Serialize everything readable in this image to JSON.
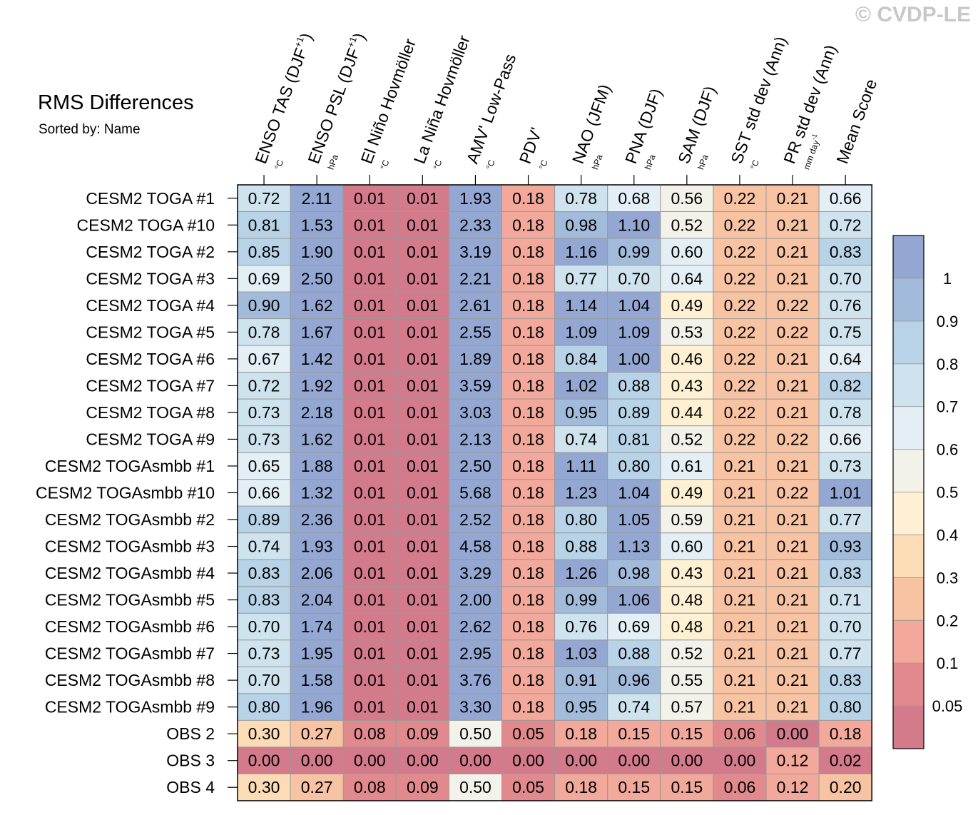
{
  "watermark": "© CVDP-LE",
  "chart_data": {
    "type": "heatmap",
    "title": "RMS Differences",
    "subtitle": "Sorted by: Name",
    "columns": [
      {
        "label": "ENSO TAS (DJF",
        "sup": "+1",
        "close": ")",
        "unit": "°C"
      },
      {
        "label": "ENSO PSL (DJF",
        "sup": "+1",
        "close": ")",
        "unit": "hPa"
      },
      {
        "label": "El Niño Hovmöller",
        "unit": "°C"
      },
      {
        "label": "La Niña Hovmöller",
        "unit": "°C"
      },
      {
        "label": "AMV' Low-Pass",
        "unit": "°C"
      },
      {
        "label": "PDV'",
        "unit": "°C"
      },
      {
        "label": "NAO (JFM)",
        "unit": "hPa"
      },
      {
        "label": "PNA (DJF)",
        "unit": "hPa"
      },
      {
        "label": "SAM (DJF)",
        "unit": "hPa"
      },
      {
        "label": "SST std dev (Ann)",
        "unit": "°C"
      },
      {
        "label": "PR std dev (Ann)",
        "unit": "mm day",
        "unit_sup": "-1"
      },
      {
        "label": "Mean Score",
        "unit": ""
      }
    ],
    "rows": [
      "CESM2 TOGA #1",
      "CESM2 TOGA #10",
      "CESM2 TOGA #2",
      "CESM2 TOGA #3",
      "CESM2 TOGA #4",
      "CESM2 TOGA #5",
      "CESM2 TOGA #6",
      "CESM2 TOGA #7",
      "CESM2 TOGA #8",
      "CESM2 TOGA #9",
      "CESM2 TOGAsmbb #1",
      "CESM2 TOGAsmbb #10",
      "CESM2 TOGAsmbb #2",
      "CESM2 TOGAsmbb #3",
      "CESM2 TOGAsmbb #4",
      "CESM2 TOGAsmbb #5",
      "CESM2 TOGAsmbb #6",
      "CESM2 TOGAsmbb #7",
      "CESM2 TOGAsmbb #8",
      "CESM2 TOGAsmbb #9",
      "OBS 2",
      "OBS 3",
      "OBS 4"
    ],
    "values": [
      [
        "0.72",
        "2.11",
        "0.01",
        "0.01",
        "1.93",
        "0.18",
        "0.78",
        "0.68",
        "0.56",
        "0.22",
        "0.21",
        "0.66"
      ],
      [
        "0.81",
        "1.53",
        "0.01",
        "0.01",
        "2.33",
        "0.18",
        "0.98",
        "1.10",
        "0.52",
        "0.22",
        "0.21",
        "0.72"
      ],
      [
        "0.85",
        "1.90",
        "0.01",
        "0.01",
        "3.19",
        "0.18",
        "1.16",
        "0.99",
        "0.60",
        "0.22",
        "0.21",
        "0.83"
      ],
      [
        "0.69",
        "2.50",
        "0.01",
        "0.01",
        "2.21",
        "0.18",
        "0.77",
        "0.70",
        "0.64",
        "0.22",
        "0.21",
        "0.70"
      ],
      [
        "0.90",
        "1.62",
        "0.01",
        "0.01",
        "2.61",
        "0.18",
        "1.14",
        "1.04",
        "0.49",
        "0.22",
        "0.22",
        "0.76"
      ],
      [
        "0.78",
        "1.67",
        "0.01",
        "0.01",
        "2.55",
        "0.18",
        "1.09",
        "1.09",
        "0.53",
        "0.22",
        "0.22",
        "0.75"
      ],
      [
        "0.67",
        "1.42",
        "0.01",
        "0.01",
        "1.89",
        "0.18",
        "0.84",
        "1.00",
        "0.46",
        "0.22",
        "0.21",
        "0.64"
      ],
      [
        "0.72",
        "1.92",
        "0.01",
        "0.01",
        "3.59",
        "0.18",
        "1.02",
        "0.88",
        "0.43",
        "0.22",
        "0.21",
        "0.82"
      ],
      [
        "0.73",
        "2.18",
        "0.01",
        "0.01",
        "3.03",
        "0.18",
        "0.95",
        "0.89",
        "0.44",
        "0.22",
        "0.21",
        "0.78"
      ],
      [
        "0.73",
        "1.62",
        "0.01",
        "0.01",
        "2.13",
        "0.18",
        "0.74",
        "0.81",
        "0.52",
        "0.22",
        "0.22",
        "0.66"
      ],
      [
        "0.65",
        "1.88",
        "0.01",
        "0.01",
        "2.50",
        "0.18",
        "1.11",
        "0.80",
        "0.61",
        "0.21",
        "0.21",
        "0.73"
      ],
      [
        "0.66",
        "1.32",
        "0.01",
        "0.01",
        "5.68",
        "0.18",
        "1.23",
        "1.04",
        "0.49",
        "0.21",
        "0.22",
        "1.01"
      ],
      [
        "0.89",
        "2.36",
        "0.01",
        "0.01",
        "2.52",
        "0.18",
        "0.80",
        "1.05",
        "0.59",
        "0.21",
        "0.21",
        "0.77"
      ],
      [
        "0.74",
        "1.93",
        "0.01",
        "0.01",
        "4.58",
        "0.18",
        "0.88",
        "1.13",
        "0.60",
        "0.21",
        "0.21",
        "0.93"
      ],
      [
        "0.83",
        "2.06",
        "0.01",
        "0.01",
        "3.29",
        "0.18",
        "1.26",
        "0.98",
        "0.43",
        "0.21",
        "0.21",
        "0.83"
      ],
      [
        "0.83",
        "2.04",
        "0.01",
        "0.01",
        "2.00",
        "0.18",
        "0.99",
        "1.06",
        "0.48",
        "0.21",
        "0.21",
        "0.71"
      ],
      [
        "0.70",
        "1.74",
        "0.01",
        "0.01",
        "2.62",
        "0.18",
        "0.76",
        "0.69",
        "0.48",
        "0.21",
        "0.21",
        "0.70"
      ],
      [
        "0.73",
        "1.95",
        "0.01",
        "0.01",
        "2.95",
        "0.18",
        "1.03",
        "0.88",
        "0.52",
        "0.21",
        "0.21",
        "0.77"
      ],
      [
        "0.70",
        "1.58",
        "0.01",
        "0.01",
        "3.76",
        "0.18",
        "0.91",
        "0.96",
        "0.55",
        "0.21",
        "0.21",
        "0.83"
      ],
      [
        "0.80",
        "1.96",
        "0.01",
        "0.01",
        "3.30",
        "0.18",
        "0.95",
        "0.74",
        "0.57",
        "0.21",
        "0.21",
        "0.80"
      ],
      [
        "0.30",
        "0.27",
        "0.08",
        "0.09",
        "0.50",
        "0.05",
        "0.18",
        "0.15",
        "0.15",
        "0.06",
        "0.00",
        "0.18"
      ],
      [
        "0.00",
        "0.00",
        "0.00",
        "0.00",
        "0.00",
        "0.00",
        "0.00",
        "0.00",
        "0.00",
        "0.00",
        "0.12",
        "0.02"
      ],
      [
        "0.30",
        "0.27",
        "0.08",
        "0.09",
        "0.50",
        "0.05",
        "0.18",
        "0.15",
        "0.15",
        "0.06",
        "0.12",
        "0.20"
      ]
    ],
    "colorbar": {
      "levels": [
        0.05,
        0.1,
        0.2,
        0.3,
        0.4,
        0.5,
        0.6,
        0.7,
        0.8,
        0.9,
        1
      ],
      "tick_labels": [
        "0.05",
        "0.1",
        "0.2",
        "0.3",
        "0.4",
        "0.5",
        "0.6",
        "0.7",
        "0.8",
        "0.9",
        "1"
      ],
      "colors": [
        "#d37a8b",
        "#e2898d",
        "#f2a89a",
        "#f8c3a3",
        "#fcdcb7",
        "#fef0d2",
        "#f2f2ea",
        "#e3eff5",
        "#cfe3ef",
        "#b8d3e7",
        "#a2bbdb",
        "#93a7d2"
      ]
    }
  }
}
